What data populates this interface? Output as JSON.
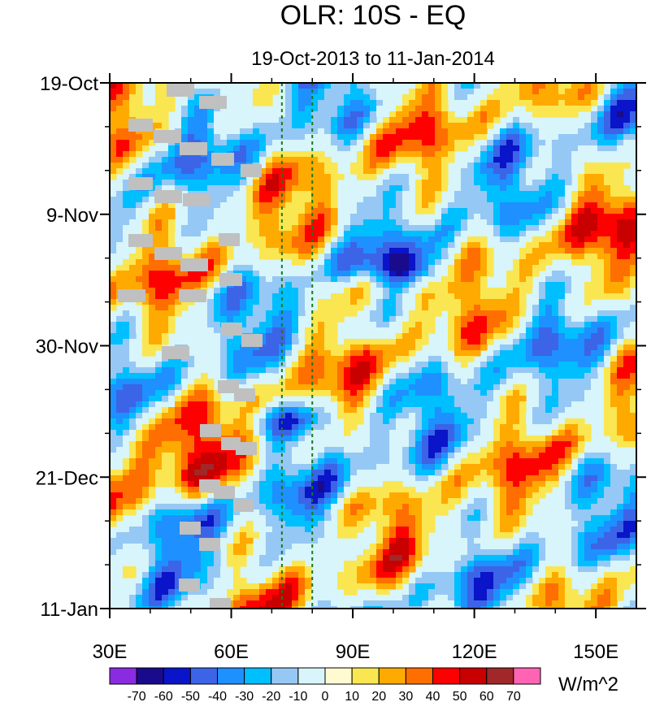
{
  "chart_data": {
    "type": "heatmap",
    "title": "OLR: 10S - EQ",
    "subtitle": "19-Oct-2013 to 11-Jan-2014",
    "x_axis": {
      "range": [
        30,
        160
      ],
      "ticks": [
        30,
        60,
        90,
        120,
        150
      ],
      "tick_labels": [
        "30E",
        "60E",
        "90E",
        "120E",
        "150E"
      ]
    },
    "y_axis": {
      "range_days": [
        0,
        84
      ],
      "ticks": [
        0,
        21,
        42,
        63,
        84
      ],
      "tick_labels": [
        "19-Oct",
        "9-Nov",
        "30-Nov",
        "21-Dec",
        "11-Jan"
      ]
    },
    "reference_lines_lon": [
      72.5,
      80
    ],
    "colorbar": {
      "units": "W/m^2",
      "levels": [
        -70,
        -60,
        -50,
        -40,
        -30,
        -20,
        -10,
        0,
        10,
        20,
        30,
        40,
        50,
        60,
        70
      ],
      "colors": [
        "#8a2be2",
        "#1a0a8c",
        "#0a14c8",
        "#3c64e6",
        "#1e90ff",
        "#00bfff",
        "#96c8f5",
        "#d7f5fa",
        "#fffad2",
        "#fae650",
        "#ffaa00",
        "#ff6e00",
        "#ff0000",
        "#c80000",
        "#a02828",
        "#ff64b4"
      ]
    },
    "missing_color": "#c0c0c0",
    "background_level": 0
  }
}
